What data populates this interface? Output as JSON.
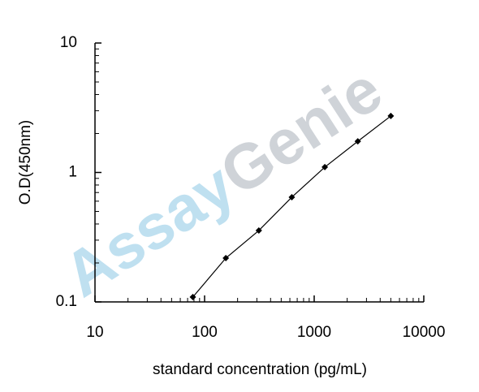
{
  "chart_data": {
    "type": "line",
    "x_label": "standard concentration (pg/mL)",
    "y_label": "O.D(450nm)",
    "watermark": [
      "Assay",
      "Genie"
    ],
    "x": [
      78.125,
      156.25,
      312.5,
      625,
      1250,
      2500,
      5000
    ],
    "series": [
      {
        "color": "#000000",
        "values": [
          0.109,
          0.218,
          0.356,
          0.644,
          1.1,
          1.74,
          2.73
        ]
      }
    ],
    "xlim": [
      10,
      10000
    ],
    "ylim": [
      0.1,
      10
    ],
    "xticks": [
      10,
      100,
      1000,
      10000
    ],
    "yticks": [
      0.1,
      1,
      10
    ],
    "xscale": "log",
    "yscale": "log"
  }
}
